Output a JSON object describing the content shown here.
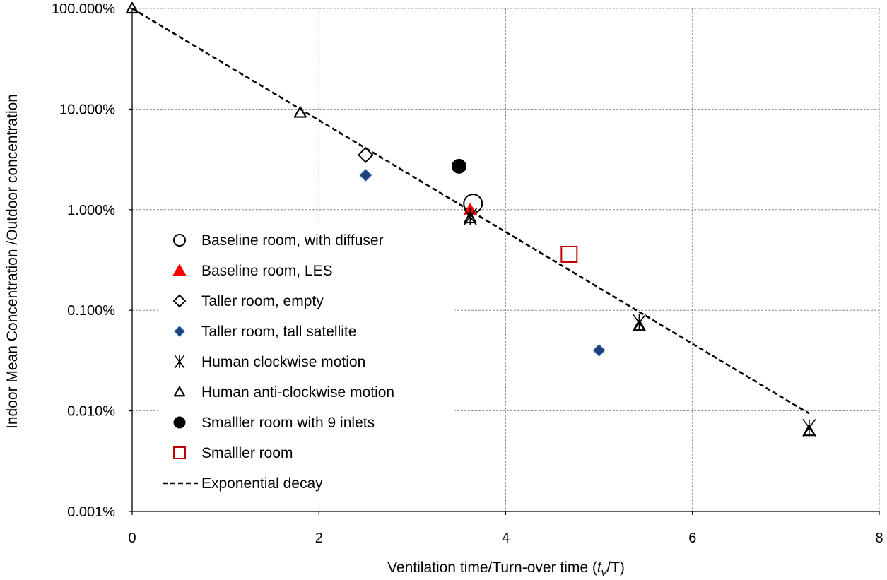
{
  "chart_data": {
    "type": "scatter",
    "title": "",
    "xlabel_prefix": "Ventilation time/Turn-over time (",
    "xlabel_var_t": "t",
    "xlabel_sub_v": "v",
    "xlabel_suffix": "/T)",
    "ylabel": "Indoor Mean  Concentration /Outdoor concentration",
    "x_range": [
      0,
      8
    ],
    "y_range": [
      0.001,
      100
    ],
    "y_scale": "log",
    "x_ticks": [
      "0",
      "2",
      "4",
      "6",
      "8"
    ],
    "y_ticks": [
      "100.000%",
      "10.000%",
      "1.000%",
      "0.100%",
      "0.010%",
      "0.001%"
    ],
    "legend_position": "left-center",
    "series": [
      {
        "name": "Baseline room,  with diffuser",
        "marker": "open-circle",
        "color": "#000000",
        "points": [
          {
            "x": 3.65,
            "y": 1.15
          }
        ]
      },
      {
        "name": "Baseline room, LES",
        "marker": "filled-triangle",
        "color": "#ff0000",
        "points": [
          {
            "x": 3.62,
            "y": 1.0
          }
        ]
      },
      {
        "name": "Taller room, empty",
        "marker": "open-diamond",
        "color": "#000000",
        "points": [
          {
            "x": 2.5,
            "y": 3.5
          }
        ]
      },
      {
        "name": "Taller room, tall satellite",
        "marker": "filled-diamond",
        "color": "#1f3f7a",
        "points": [
          {
            "x": 2.5,
            "y": 2.2
          },
          {
            "x": 5.0,
            "y": 0.04
          }
        ]
      },
      {
        "name": "Human clockwise motion",
        "marker": "asterisk",
        "color": "#000000",
        "points": [
          {
            "x": 3.62,
            "y": 0.85
          },
          {
            "x": 5.43,
            "y": 0.075
          },
          {
            "x": 7.25,
            "y": 0.0068
          }
        ]
      },
      {
        "name": "Human anti-clockwise motion",
        "marker": "open-triangle",
        "color": "#000000",
        "points": [
          {
            "x": 0.0,
            "y": 100.0
          },
          {
            "x": 1.8,
            "y": 9.2
          },
          {
            "x": 3.62,
            "y": 0.82
          },
          {
            "x": 5.43,
            "y": 0.07
          },
          {
            "x": 7.25,
            "y": 0.0063
          }
        ]
      },
      {
        "name": "Smalller room with 9 inlets",
        "marker": "filled-circle",
        "color": "#000000",
        "points": [
          {
            "x": 3.5,
            "y": 2.7
          }
        ]
      },
      {
        "name": "Smalller room",
        "marker": "open-square",
        "color": "#c00000",
        "points": [
          {
            "x": 4.68,
            "y": 0.36
          }
        ]
      },
      {
        "name": "Exponential decay",
        "marker": "dashed-line",
        "color": "#000000",
        "points": [
          {
            "x": 0.0,
            "y": 100.0
          },
          {
            "x": 7.25,
            "y": 0.0094
          }
        ]
      }
    ]
  }
}
